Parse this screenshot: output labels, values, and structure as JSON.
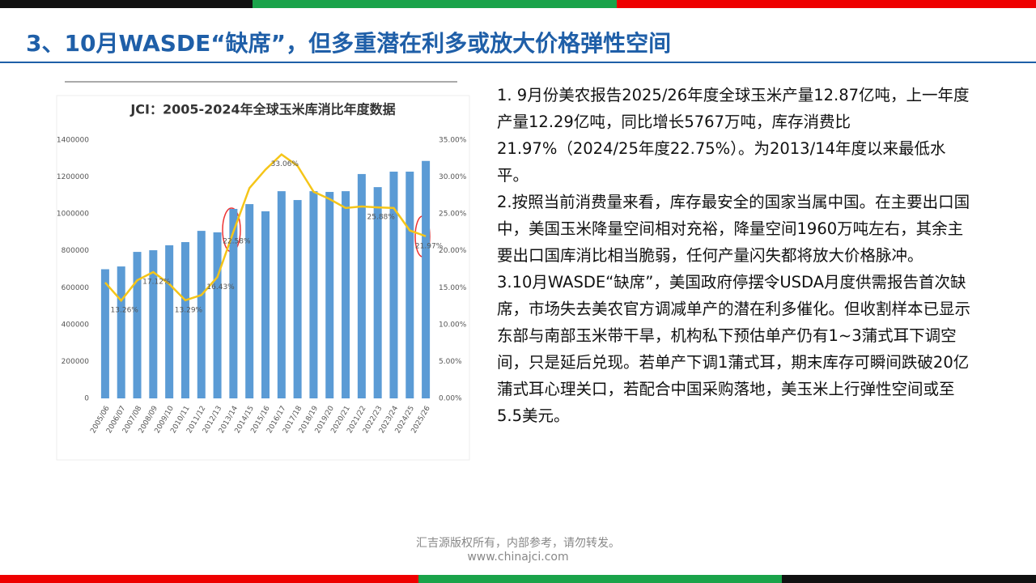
{
  "header": {
    "title": "3、10月WASDE“缺席”，但多重潜在利多或放大价格弹性空间"
  },
  "chart_data": {
    "type": "bar_line",
    "title": "JCI：2005-2024年全球玉米库消比年度数据",
    "categories": [
      "2005/06",
      "2006/07",
      "2007/08",
      "2008/09",
      "2009/10",
      "2010/11",
      "2011/12",
      "2012/13",
      "2013/14",
      "2014/15",
      "2015/16",
      "2016/17",
      "2017/18",
      "2018/19",
      "2019/20",
      "2020/21",
      "2021/22",
      "2022/23",
      "2023/24",
      "2024/25",
      "2025/26"
    ],
    "series": [
      {
        "type": "bar",
        "color": "#5b9bd5",
        "values": [
          700000,
          715000,
          794000,
          803000,
          830000,
          847000,
          908000,
          900000,
          1027000,
          1053000,
          1014000,
          1123000,
          1075000,
          1123000,
          1119000,
          1123000,
          1216000,
          1145000,
          1229000,
          1229000,
          1287000
        ]
      },
      {
        "type": "line",
        "axis": "y2",
        "color": "#f5c518",
        "values": [
          15.7,
          13.26,
          16.0,
          17.12,
          15.5,
          13.29,
          14.0,
          16.43,
          22.58,
          28.5,
          31.0,
          33.06,
          31.5,
          28.0,
          27.0,
          25.8,
          26.0,
          25.88,
          25.8,
          22.75,
          21.97
        ],
        "value_labels": [
          null,
          "13.26%",
          null,
          "17.12%",
          null,
          "13.29%",
          null,
          "16.43%",
          "22.58%",
          null,
          null,
          "33.06%",
          null,
          null,
          null,
          null,
          null,
          "25.88%",
          null,
          null,
          "21.97%"
        ]
      }
    ],
    "ylim": [
      0,
      1400000
    ],
    "yticks": [
      0,
      200000,
      400000,
      600000,
      800000,
      1000000,
      1200000,
      1400000
    ],
    "y2lim": [
      0,
      35
    ],
    "y2ticks": [
      {
        "value": 0,
        "label": "0.00%"
      },
      {
        "value": 5,
        "label": "5.00%"
      },
      {
        "value": 10,
        "label": "10.00%"
      },
      {
        "value": 15,
        "label": "15.00%"
      },
      {
        "value": 20,
        "label": "20.00%"
      },
      {
        "value": 25,
        "label": "25.00%"
      },
      {
        "value": 30,
        "label": "30.00%"
      },
      {
        "value": 35,
        "label": "35.00%"
      }
    ]
  },
  "paragraphs": [
    "1. 9月份美农报告2025/26年度全球玉米产量12.87亿吨，上一年度产量12.29亿吨，同比增长5767万吨，库存消费比21.97%（2024/25年度22.75%）。为2013/14年度以来最低水平。",
    "2.按照当前消费量来看，库存最安全的国家当属中国。在主要出口国中，美国玉米降量空间相对充裕，降量空间1960万吨左右，其余主要出口国库消比相当脆弱，任何产量闪失都将放大价格脉冲。",
    "3.10月WASDE“缺席”，美国政府停摆令USDA月度供需报告首次缺席，市场失去美农官方调减单产的潜在利多催化。但收割样本已显示东部与南部玉米带干旱，机构私下预估单产仍有1~3蒲式耳下调空间，只是延后兑现。若单产下调1蒲式耳，期末库存可瞬间跌破20亿蒲式耳心理关口，若配合中国采购落地，美玉米上行弹性空间或至5.5美元。"
  ],
  "footer": {
    "line1": "汇吉源版权所有，内部参考，请勿转发。",
    "line2": "www.chinajci.com"
  }
}
